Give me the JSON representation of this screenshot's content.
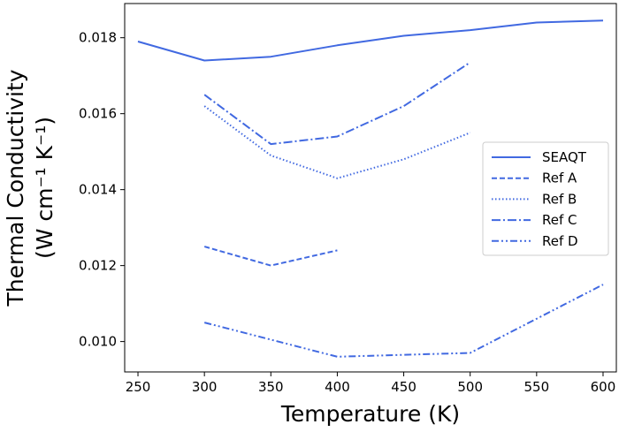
{
  "chart_data": {
    "type": "line",
    "xlabel": "Temperature (K)",
    "ylabel_line1": "Thermal Conductivity",
    "ylabel_line2": "(W cm⁻¹ K⁻¹)",
    "xlim": [
      240,
      610
    ],
    "ylim": [
      0.0092,
      0.0189
    ],
    "xticks": [
      250,
      300,
      350,
      400,
      450,
      500,
      550,
      600
    ],
    "yticks": [
      0.01,
      0.012,
      0.014,
      0.016,
      0.018
    ],
    "ytick_labels": [
      "0.010",
      "0.012",
      "0.014",
      "0.016",
      "0.018"
    ],
    "grid": false,
    "legend_position": "center-right",
    "line_color": "#4169e1",
    "series": [
      {
        "name": "SEAQT",
        "style": "solid",
        "x": [
          250,
          300,
          350,
          400,
          450,
          500,
          550,
          600
        ],
        "y": [
          0.0179,
          0.0174,
          0.0175,
          0.0178,
          0.01805,
          0.0182,
          0.0184,
          0.01845
        ]
      },
      {
        "name": "Ref A",
        "style": "dashed",
        "x": [
          300,
          350,
          400
        ],
        "y": [
          0.0125,
          0.012,
          0.0124
        ]
      },
      {
        "name": "Ref B",
        "style": "dotted",
        "x": [
          300,
          350,
          400,
          450,
          500
        ],
        "y": [
          0.0162,
          0.0149,
          0.0143,
          0.0148,
          0.0155
        ]
      },
      {
        "name": "Ref C",
        "style": "dashdot",
        "x": [
          300,
          350,
          400,
          450,
          500
        ],
        "y": [
          0.0165,
          0.0152,
          0.0154,
          0.0162,
          0.01735
        ]
      },
      {
        "name": "Ref D",
        "style": "dashdotdot",
        "x": [
          300,
          400,
          500,
          600
        ],
        "y": [
          0.0105,
          0.0096,
          0.0097,
          0.0115
        ]
      }
    ]
  }
}
